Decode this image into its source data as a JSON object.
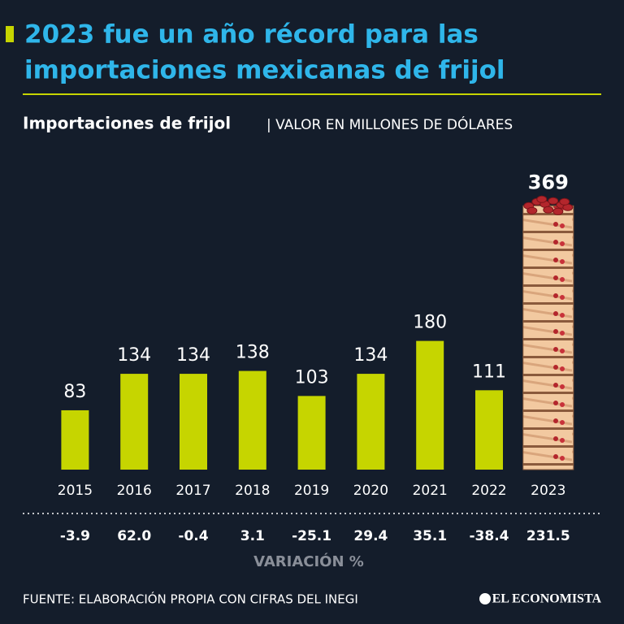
{
  "chart_data": {
    "type": "bar",
    "title": [
      "2023 fue un año récord para las",
      "importaciones mexicanas de frijol"
    ],
    "subtitle": "Importaciones de frijol",
    "unit_note": "| VALOR EN MILLONES DE DÓLARES",
    "categories": [
      "2015",
      "2016",
      "2017",
      "2018",
      "2019",
      "2020",
      "2021",
      "2022",
      "2023"
    ],
    "values": [
      83,
      134,
      134,
      138,
      103,
      134,
      180,
      111,
      369
    ],
    "color": "#c6d500",
    "highlight_color": "#f2c9a0",
    "variation": [
      -3.9,
      {
        "value": 62,
        "label": "62.0"
      },
      -0.4,
      3.1,
      -25.1,
      29.4,
      35.1,
      -38.4,
      231.5
    ],
    "variation_title": "VARIACIÓN %",
    "source": "FUENTE: ELABORACIÓN PROPIA CON CIFRAS DEL INEGI",
    "logo": "EL ECONOMISTA"
  }
}
